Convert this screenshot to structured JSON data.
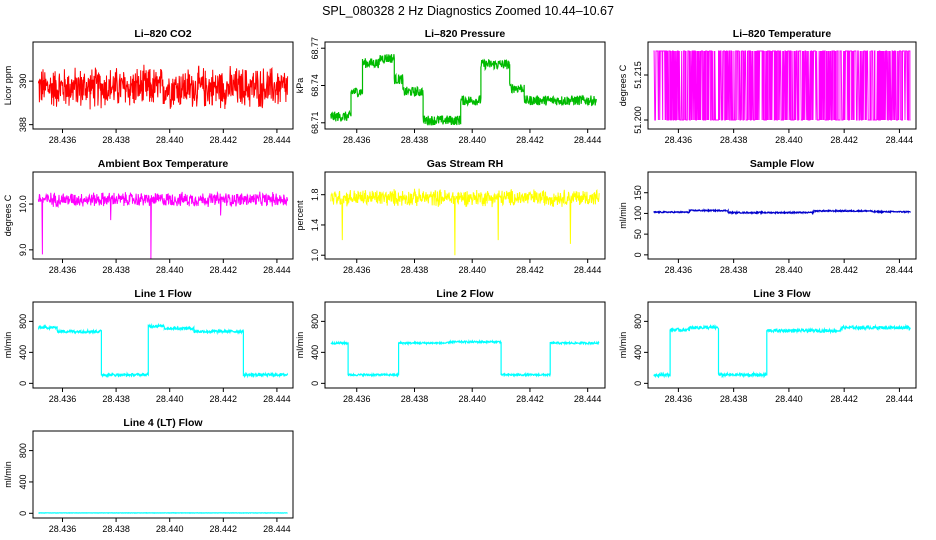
{
  "main_title": "SPL_080328  2 Hz Diagnostics Zoomed 10.44–10.67",
  "x_ticks": [
    "28.436",
    "28.438",
    "28.440",
    "28.442",
    "28.444"
  ],
  "chart_data": [
    {
      "type": "line",
      "title": "Li–820 CO2",
      "ylabel": "Licor ppm",
      "color": "#ff0000",
      "xlim": [
        28.4349,
        28.4446
      ],
      "ylim": [
        387.8,
        391.8
      ],
      "yticks": [
        "388",
        "390"
      ],
      "pattern": "noise",
      "center": 389.7,
      "amp": 1.1
    },
    {
      "type": "line",
      "title": "Li–820 Pressure",
      "ylabel": "kPa",
      "color": "#00bb00",
      "xlim": [
        28.4349,
        28.4446
      ],
      "ylim": [
        68.705,
        68.775
      ],
      "yticks": [
        "68.71",
        "68.74",
        "68.77"
      ],
      "pattern": "steps",
      "segments": [
        [
          28.4351,
          28.4358,
          68.715
        ],
        [
          28.4358,
          28.4362,
          68.735
        ],
        [
          28.4362,
          28.4368,
          68.758
        ],
        [
          28.4368,
          28.4373,
          68.762
        ],
        [
          28.4373,
          28.4376,
          68.745
        ],
        [
          28.4376,
          28.4383,
          68.735
        ],
        [
          28.4383,
          28.4396,
          68.712
        ],
        [
          28.4396,
          28.4403,
          68.728
        ],
        [
          28.4403,
          28.4413,
          68.757
        ],
        [
          28.4413,
          28.4418,
          68.738
        ],
        [
          28.4418,
          28.4431,
          68.728
        ],
        [
          28.4431,
          28.4443,
          68.728
        ]
      ],
      "amp": 0.004
    },
    {
      "type": "line",
      "title": "Li–820 Temperature",
      "ylabel": "degrees C",
      "color": "#ff00ff",
      "xlim": [
        28.4349,
        28.4446
      ],
      "ylim": [
        51.197,
        51.226
      ],
      "yticks": [
        "51.200",
        "51.215"
      ],
      "pattern": "binary",
      "low": 51.2,
      "high": 51.223
    },
    {
      "type": "line",
      "title": "Ambient Box Temperature",
      "ylabel": "degrees C",
      "color": "#ff00ff",
      "xlim": [
        28.4349,
        28.4446
      ],
      "ylim": [
        8.8,
        10.7
      ],
      "yticks": [
        "9.0",
        "10.0"
      ],
      "pattern": "noise",
      "center": 10.1,
      "amp": 0.18,
      "spikes": [
        [
          28.43525,
          8.9
        ],
        [
          28.4393,
          8.8
        ],
        [
          28.4378,
          9.65
        ],
        [
          28.4419,
          9.75
        ]
      ]
    },
    {
      "type": "line",
      "title": "Gas Stream RH",
      "ylabel": "percent",
      "color": "#ffff00",
      "xlim": [
        28.4349,
        28.4446
      ],
      "ylim": [
        0.95,
        2.1
      ],
      "yticks": [
        "1.0",
        "1.4",
        "1.8"
      ],
      "pattern": "noise",
      "center": 1.76,
      "amp": 0.13,
      "spikes": [
        [
          28.4355,
          1.2
        ],
        [
          28.4394,
          1.0
        ],
        [
          28.4409,
          1.2
        ],
        [
          28.4434,
          1.15
        ]
      ]
    },
    {
      "type": "line",
      "title": "Sample Flow",
      "ylabel": "ml/min",
      "color": "#0000cc",
      "xlim": [
        28.4349,
        28.4446
      ],
      "ylim": [
        -10,
        200
      ],
      "yticks": [
        "0",
        "50",
        "100",
        "150"
      ],
      "pattern": "steps",
      "segments": [
        [
          28.4351,
          28.4364,
          103
        ],
        [
          28.4364,
          28.4378,
          107
        ],
        [
          28.4378,
          28.4396,
          102
        ],
        [
          28.4396,
          28.4409,
          102
        ],
        [
          28.4409,
          28.443,
          106
        ],
        [
          28.443,
          28.4444,
          104
        ]
      ],
      "amp": 1.5
    },
    {
      "type": "line",
      "title": "Line 1 Flow",
      "ylabel": "ml/min",
      "color": "#00ffff",
      "xlim": [
        28.4349,
        28.4446
      ],
      "ylim": [
        -60,
        1050
      ],
      "yticks": [
        "0",
        "400",
        "800"
      ],
      "pattern": "steps",
      "segments": [
        [
          28.4351,
          28.4358,
          720
        ],
        [
          28.4358,
          28.43745,
          670
        ],
        [
          28.43745,
          28.4392,
          110
        ],
        [
          28.4392,
          28.4398,
          740
        ],
        [
          28.4398,
          28.4409,
          710
        ],
        [
          28.4409,
          28.44275,
          670
        ],
        [
          28.44275,
          28.4444,
          110
        ]
      ],
      "amp": 18
    },
    {
      "type": "line",
      "title": "Line 2 Flow",
      "ylabel": "ml/min",
      "color": "#00ffff",
      "xlim": [
        28.4349,
        28.4446
      ],
      "ylim": [
        -60,
        1050
      ],
      "yticks": [
        "0",
        "400",
        "800"
      ],
      "pattern": "steps",
      "segments": [
        [
          28.4351,
          28.4357,
          520
        ],
        [
          28.4357,
          28.43745,
          110
        ],
        [
          28.43745,
          28.4392,
          520
        ],
        [
          28.4392,
          28.441,
          535
        ],
        [
          28.441,
          28.4427,
          110
        ],
        [
          28.4427,
          28.4444,
          520
        ]
      ],
      "amp": 12
    },
    {
      "type": "line",
      "title": "Line 3 Flow",
      "ylabel": "ml/min",
      "color": "#00ffff",
      "xlim": [
        28.4349,
        28.4446
      ],
      "ylim": [
        -60,
        1050
      ],
      "yticks": [
        "0",
        "400",
        "800"
      ],
      "pattern": "steps",
      "segments": [
        [
          28.4351,
          28.4357,
          110
        ],
        [
          28.4357,
          28.4364,
          690
        ],
        [
          28.4364,
          28.43745,
          720
        ],
        [
          28.43745,
          28.4392,
          110
        ],
        [
          28.4392,
          28.441,
          680
        ],
        [
          28.441,
          28.4419,
          680
        ],
        [
          28.4419,
          28.4444,
          720
        ]
      ],
      "amp": 20
    },
    {
      "type": "line",
      "title": "Line 4 (LT) Flow",
      "ylabel": "ml/min",
      "color": "#00ffff",
      "xlim": [
        28.4349,
        28.4446
      ],
      "ylim": [
        -60,
        1050
      ],
      "yticks": [
        "0",
        "400",
        "800"
      ],
      "pattern": "steps",
      "segments": [
        [
          28.4351,
          28.4444,
          5
        ]
      ],
      "amp": 2
    }
  ]
}
